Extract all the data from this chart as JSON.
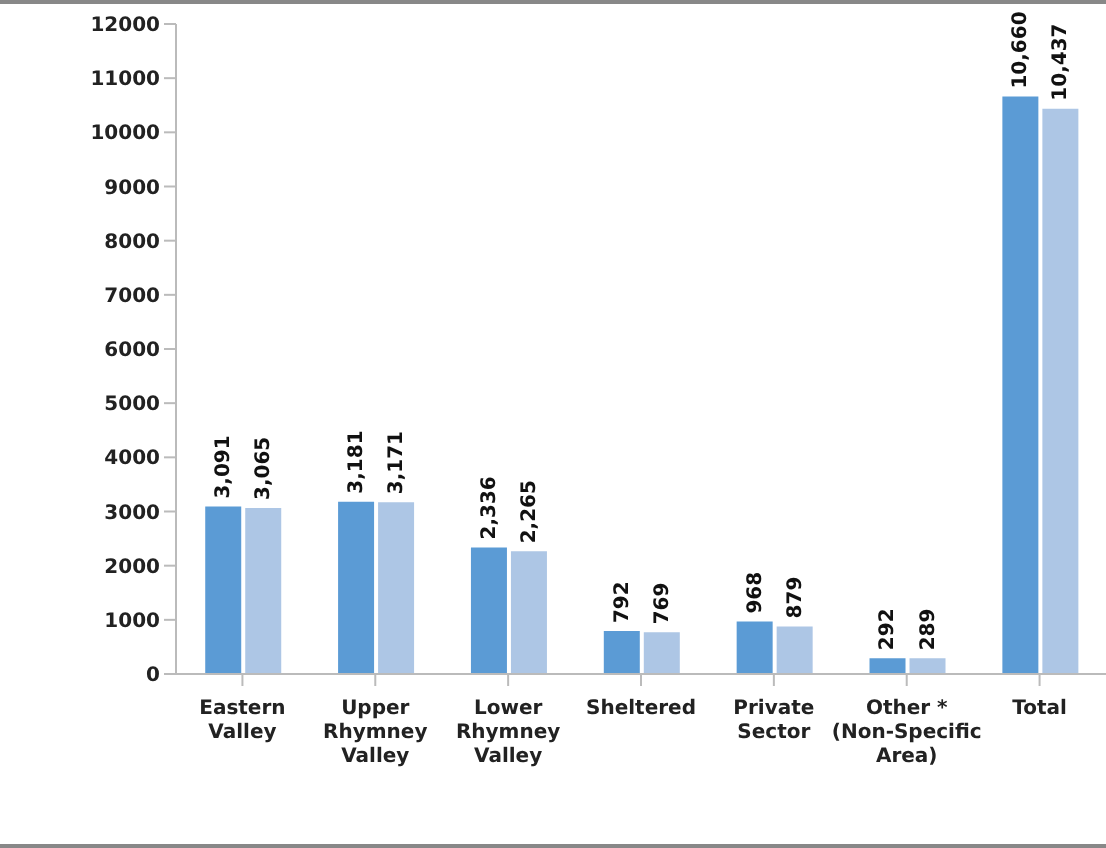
{
  "chart_data": {
    "type": "bar",
    "categories": [
      "Eastern Valley",
      "Upper Rhymney Valley",
      "Lower Rhymney Valley",
      "Sheltered",
      "Private Sector",
      "Other * (Non-Specific Area)",
      "Total"
    ],
    "series": [
      {
        "color": "#5b9bd5",
        "values": [
          3091,
          3181,
          2336,
          792,
          968,
          292,
          10660
        ],
        "value_labels": [
          "3,091",
          "3,181",
          "2,336",
          "792",
          "968",
          "292",
          "10,660"
        ]
      },
      {
        "color": "#adc6e5",
        "values": [
          3065,
          3171,
          2265,
          769,
          879,
          289,
          10437
        ],
        "value_labels": [
          "3,065",
          "3,171",
          "2,265",
          "769",
          "879",
          "289",
          "10,437"
        ]
      }
    ],
    "ylim": [
      0,
      12000
    ],
    "yticks": [
      0,
      1000,
      2000,
      3000,
      4000,
      5000,
      6000,
      7000,
      8000,
      9000,
      10000,
      11000,
      12000
    ],
    "grid": false,
    "legend": false
  }
}
